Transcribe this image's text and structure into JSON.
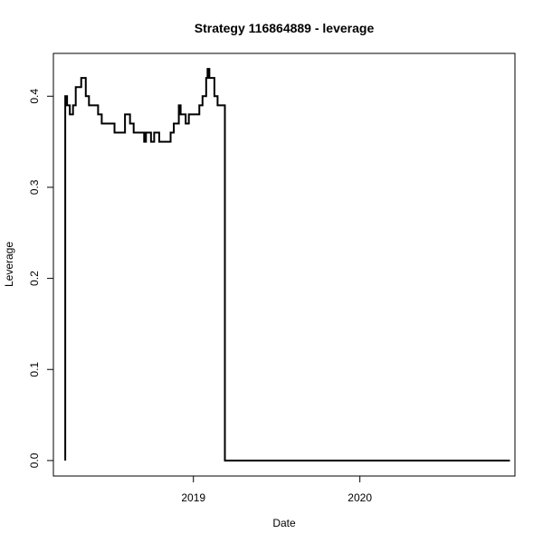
{
  "chart_data": {
    "type": "line",
    "title": "Strategy 116864889 - leverage",
    "xlabel": "Date",
    "ylabel": "Leverage",
    "x_ticks": [
      {
        "value": "2019-01-01",
        "label": "2019"
      },
      {
        "value": "2020-01-01",
        "label": "2020"
      }
    ],
    "y_ticks": [
      {
        "value": 0.0,
        "label": "0.0"
      },
      {
        "value": 0.1,
        "label": "0.1"
      },
      {
        "value": 0.2,
        "label": "0.2"
      },
      {
        "value": 0.3,
        "label": "0.3"
      },
      {
        "value": 0.4,
        "label": "0.4"
      }
    ],
    "xlim": [
      "2018-02-28",
      "2020-12-06"
    ],
    "ylim": [
      -0.017,
      0.447
    ],
    "series": [
      {
        "style": "step",
        "color": "#000000",
        "points": [
          {
            "x": "2018-03-26",
            "y": 0.0
          },
          {
            "x": "2018-03-26",
            "y": 0.4
          },
          {
            "x": "2018-03-30",
            "y": 0.39
          },
          {
            "x": "2018-04-05",
            "y": 0.38
          },
          {
            "x": "2018-04-12",
            "y": 0.39
          },
          {
            "x": "2018-04-18",
            "y": 0.41
          },
          {
            "x": "2018-04-30",
            "y": 0.42
          },
          {
            "x": "2018-05-10",
            "y": 0.4
          },
          {
            "x": "2018-05-17",
            "y": 0.39
          },
          {
            "x": "2018-06-06",
            "y": 0.38
          },
          {
            "x": "2018-06-14",
            "y": 0.37
          },
          {
            "x": "2018-07-12",
            "y": 0.36
          },
          {
            "x": "2018-08-04",
            "y": 0.38
          },
          {
            "x": "2018-08-15",
            "y": 0.37
          },
          {
            "x": "2018-08-23",
            "y": 0.36
          },
          {
            "x": "2018-09-15",
            "y": 0.35
          },
          {
            "x": "2018-09-19",
            "y": 0.36
          },
          {
            "x": "2018-09-30",
            "y": 0.35
          },
          {
            "x": "2018-10-07",
            "y": 0.36
          },
          {
            "x": "2018-10-18",
            "y": 0.35
          },
          {
            "x": "2018-11-12",
            "y": 0.36
          },
          {
            "x": "2018-11-19",
            "y": 0.37
          },
          {
            "x": "2018-11-30",
            "y": 0.39
          },
          {
            "x": "2018-12-04",
            "y": 0.38
          },
          {
            "x": "2018-12-15",
            "y": 0.37
          },
          {
            "x": "2018-12-22",
            "y": 0.38
          },
          {
            "x": "2019-01-14",
            "y": 0.39
          },
          {
            "x": "2019-01-21",
            "y": 0.4
          },
          {
            "x": "2019-01-29",
            "y": 0.42
          },
          {
            "x": "2019-02-01",
            "y": 0.43
          },
          {
            "x": "2019-02-05",
            "y": 0.42
          },
          {
            "x": "2019-02-16",
            "y": 0.4
          },
          {
            "x": "2019-02-23",
            "y": 0.39
          },
          {
            "x": "2019-03-11",
            "y": 0.0
          },
          {
            "x": "2020-11-25",
            "y": 0.0
          }
        ]
      }
    ],
    "grid": false,
    "legend": "none"
  }
}
